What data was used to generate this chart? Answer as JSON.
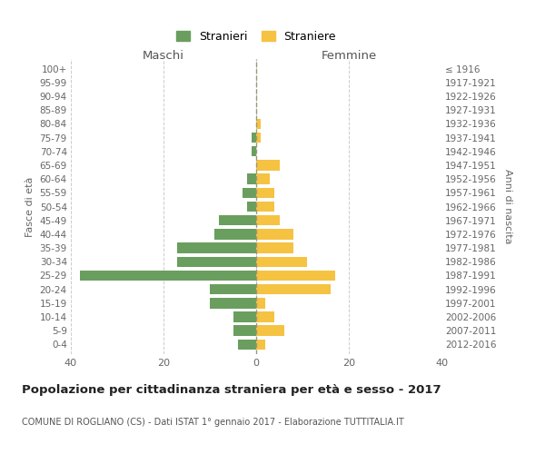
{
  "age_groups": [
    "0-4",
    "5-9",
    "10-14",
    "15-19",
    "20-24",
    "25-29",
    "30-34",
    "35-39",
    "40-44",
    "45-49",
    "50-54",
    "55-59",
    "60-64",
    "65-69",
    "70-74",
    "75-79",
    "80-84",
    "85-89",
    "90-94",
    "95-99",
    "100+"
  ],
  "birth_years": [
    "2012-2016",
    "2007-2011",
    "2002-2006",
    "1997-2001",
    "1992-1996",
    "1987-1991",
    "1982-1986",
    "1977-1981",
    "1972-1976",
    "1967-1971",
    "1962-1966",
    "1957-1961",
    "1952-1956",
    "1947-1951",
    "1942-1946",
    "1937-1941",
    "1932-1936",
    "1927-1931",
    "1922-1926",
    "1917-1921",
    "≤ 1916"
  ],
  "maschi": [
    4,
    5,
    5,
    10,
    10,
    38,
    17,
    17,
    9,
    8,
    2,
    3,
    2,
    0,
    1,
    1,
    0,
    0,
    0,
    0,
    0
  ],
  "femmine": [
    2,
    6,
    4,
    2,
    16,
    17,
    11,
    8,
    8,
    5,
    4,
    4,
    3,
    5,
    0,
    1,
    1,
    0,
    0,
    0,
    0
  ],
  "color_maschi": "#6a9e5e",
  "color_femmine": "#f5c242",
  "title": "Popolazione per cittadinanza straniera per età e sesso - 2017",
  "subtitle": "COMUNE DI ROGLIANO (CS) - Dati ISTAT 1° gennaio 2017 - Elaborazione TUTTITALIA.IT",
  "label_maschi": "Maschi",
  "label_femmine": "Femmine",
  "ylabel_left": "Fasce di età",
  "ylabel_right": "Anni di nascita",
  "legend_maschi": "Stranieri",
  "legend_femmine": "Straniere",
  "xlim": 40,
  "background_color": "#ffffff",
  "grid_color": "#cccccc"
}
